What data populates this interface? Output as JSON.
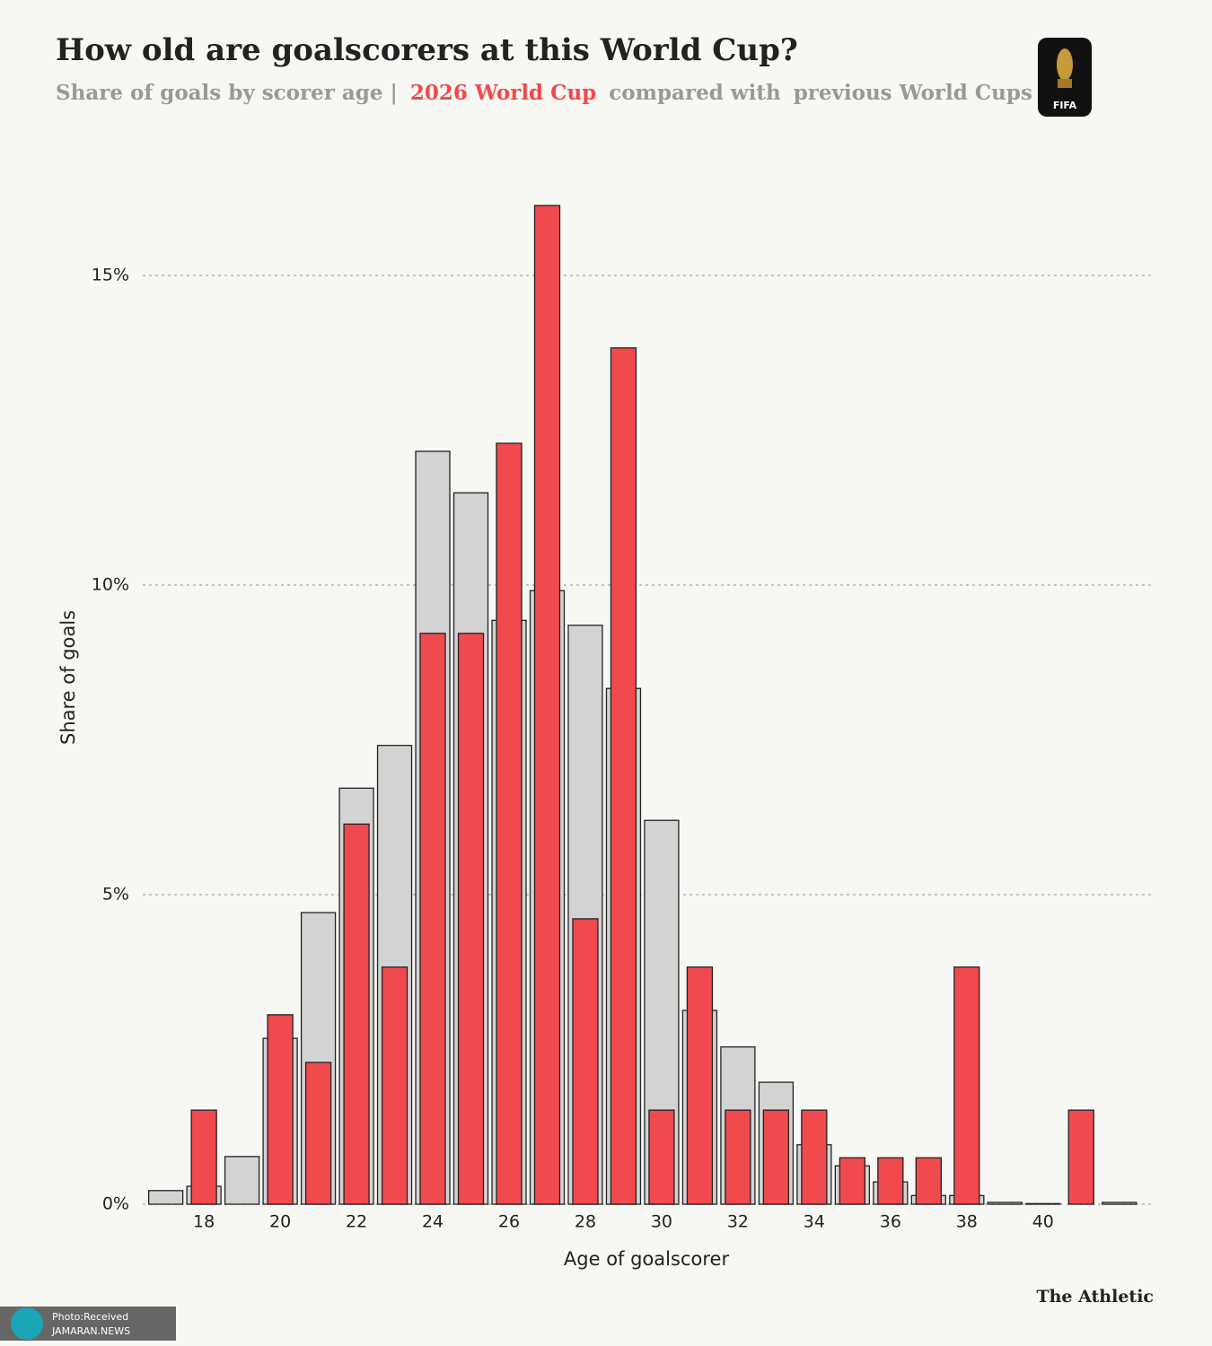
{
  "chart_data": {
    "type": "bar",
    "title": "How old are goalscorers at this World Cup?",
    "subtitle": [
      "Share of goals by scorer age |",
      "compared with"
    ],
    "x_label": "Age of goalscorer",
    "y_label": "Share of goals",
    "x": [
      17,
      18,
      19,
      20,
      21,
      22,
      23,
      24,
      25,
      26,
      27,
      28,
      29,
      30,
      31,
      32,
      33,
      34,
      35,
      36,
      37,
      38,
      39,
      40,
      41,
      42
    ],
    "series": [
      {
        "name": "previous World Cups",
        "color": "#d3d3d3",
        "values": [
          0.22,
          0.29,
          0.77,
          2.68,
          4.71,
          6.72,
          7.41,
          12.16,
          11.49,
          9.43,
          9.91,
          9.35,
          8.33,
          6.2,
          3.13,
          2.54,
          1.97,
          0.96,
          0.62,
          0.36,
          0.14,
          0.14,
          0.03,
          0.01,
          0,
          0.03
        ]
      },
      {
        "name": "2026 World Cup",
        "color": "#f04a4e",
        "values": [
          0,
          1.52,
          0,
          3.06,
          2.29,
          6.14,
          3.83,
          9.22,
          9.22,
          12.29,
          16.13,
          4.61,
          13.83,
          1.52,
          3.83,
          1.52,
          1.52,
          1.52,
          0.75,
          0.75,
          0.75,
          3.83,
          0,
          0,
          1.52,
          0
        ]
      }
    ],
    "xlim": [
      16.42,
      42.9
    ],
    "xticks": [
      18,
      20,
      22,
      24,
      26,
      28,
      30,
      32,
      34,
      36,
      38,
      40
    ],
    "ylim": [
      0,
      16.5
    ],
    "yticks": [
      {
        "value": 0,
        "label": "0%"
      },
      {
        "value": 5,
        "label": "5%"
      },
      {
        "value": 10,
        "label": "10%"
      },
      {
        "value": 15,
        "label": "15%"
      }
    ],
    "grid": true,
    "logo_text": "FIFA",
    "source": "The Athletic",
    "watermark": [
      "Photo:Received",
      "JAMARAN.NEWS"
    ]
  }
}
